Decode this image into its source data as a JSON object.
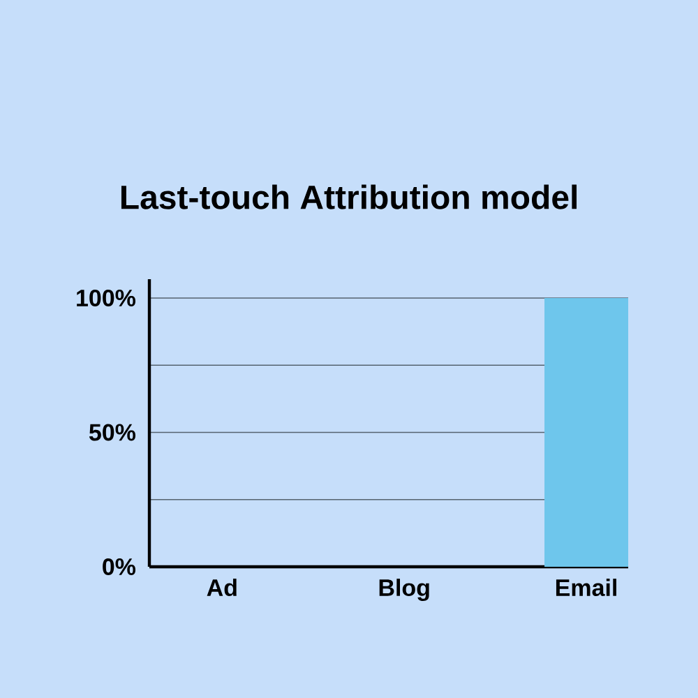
{
  "chart_data": {
    "type": "bar",
    "title": "Last-touch Attribution model",
    "categories": [
      "Ad",
      "Blog",
      "Email"
    ],
    "values": [
      0,
      0,
      100
    ],
    "color": "#6ec6ec",
    "ylim": [
      0,
      107
    ],
    "yticks": [
      {
        "value": 0,
        "label": "0%"
      },
      {
        "value": 25,
        "label": null
      },
      {
        "value": 50,
        "label": "50%"
      },
      {
        "value": 75,
        "label": null
      },
      {
        "value": 100,
        "label": "100%"
      }
    ],
    "grid": "y"
  }
}
